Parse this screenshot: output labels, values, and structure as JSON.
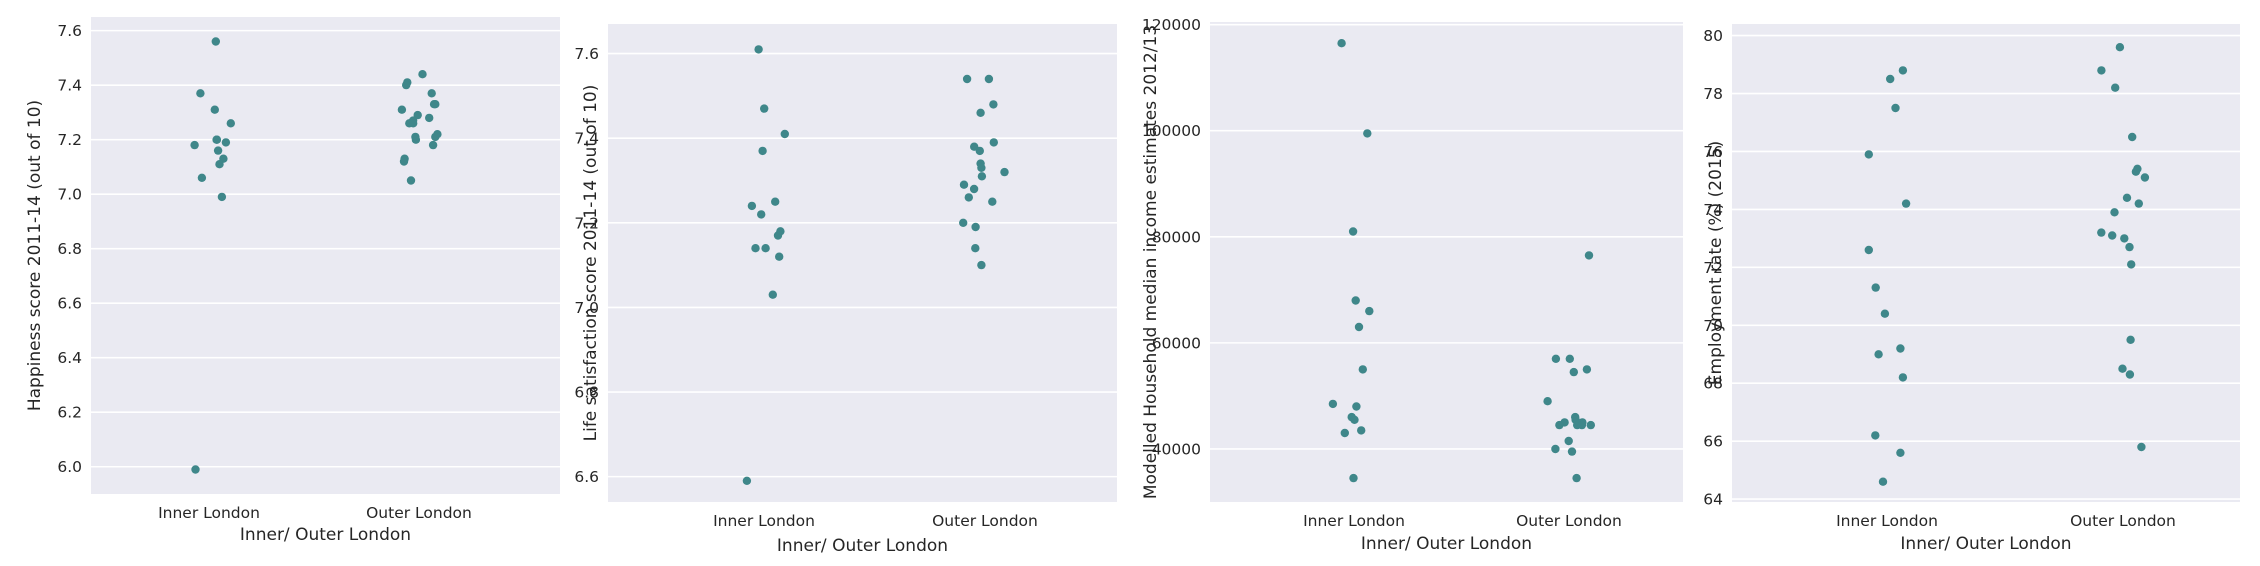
{
  "chart_data": [
    {
      "type": "scatter",
      "title": "",
      "xlabel": "Inner/ Outer London",
      "ylabel": "Happiness score 2011-14 (out of 10)",
      "categories": [
        "Inner London",
        "Outer London"
      ],
      "ylim": [
        5.9,
        7.65
      ],
      "yticks": [
        6.0,
        6.2,
        6.4,
        6.6,
        6.8,
        7.0,
        7.2,
        7.4,
        7.6
      ],
      "ytick_labels": [
        "6.0",
        "6.2",
        "6.4",
        "6.6",
        "6.8",
        "7.0",
        "7.2",
        "7.4",
        "7.6"
      ],
      "grid": true,
      "color": "#3f878a",
      "series": [
        {
          "category": "Inner London",
          "values": [
            7.56,
            7.37,
            7.31,
            7.26,
            7.2,
            7.2,
            7.18,
            7.19,
            7.16,
            7.13,
            7.11,
            7.06,
            6.99,
            5.99
          ]
        },
        {
          "category": "Outer London",
          "values": [
            7.44,
            7.41,
            7.4,
            7.37,
            7.33,
            7.33,
            7.31,
            7.29,
            7.28,
            7.27,
            7.26,
            7.26,
            7.22,
            7.21,
            7.21,
            7.2,
            7.18,
            7.13,
            7.12,
            7.05
          ]
        }
      ]
    },
    {
      "type": "scatter",
      "title": "",
      "xlabel": "Inner/ Outer London",
      "ylabel": "Life satisfaction score 2011-14 (out of 10)",
      "categories": [
        "Inner London",
        "Outer London"
      ],
      "ylim": [
        6.54,
        7.67
      ],
      "yticks": [
        6.6,
        6.8,
        7.0,
        7.2,
        7.4,
        7.6
      ],
      "ytick_labels": [
        "6.6",
        "6.8",
        "7.0",
        "7.2",
        "7.4",
        "7.6"
      ],
      "grid": true,
      "color": "#3f878a",
      "series": [
        {
          "category": "Inner London",
          "values": [
            7.61,
            7.47,
            7.41,
            7.37,
            7.25,
            7.24,
            7.22,
            7.18,
            7.17,
            7.14,
            7.14,
            7.12,
            7.03,
            6.59
          ]
        },
        {
          "category": "Outer London",
          "values": [
            7.54,
            7.54,
            7.48,
            7.46,
            7.39,
            7.38,
            7.37,
            7.34,
            7.33,
            7.32,
            7.31,
            7.29,
            7.28,
            7.26,
            7.25,
            7.2,
            7.19,
            7.14,
            7.1
          ]
        }
      ]
    },
    {
      "type": "scatter",
      "title": "",
      "xlabel": "Inner/ Outer London",
      "ylabel": "Modelled Household median income estimates 2012/13",
      "categories": [
        "Inner London",
        "Outer London"
      ],
      "ylim": [
        30000,
        120500
      ],
      "yticks": [
        40000,
        60000,
        80000,
        100000,
        120000
      ],
      "ytick_labels": [
        "40000",
        "60000",
        "80000",
        "100000",
        "120000"
      ],
      "grid": true,
      "color": "#3f878a",
      "series": [
        {
          "category": "Inner London",
          "values": [
            116500,
            99500,
            81000,
            68000,
            66000,
            63000,
            55000,
            48500,
            48000,
            46000,
            45500,
            43500,
            43000,
            34500
          ]
        },
        {
          "category": "Outer London",
          "values": [
            76500,
            57000,
            57000,
            55000,
            54500,
            49000,
            46000,
            45500,
            45000,
            45000,
            44500,
            44500,
            44500,
            44500,
            41500,
            40000,
            39500,
            34500
          ]
        }
      ]
    },
    {
      "type": "scatter",
      "title": "",
      "xlabel": "Inner/ Outer London",
      "ylabel": "Employment rate (%) (2015)",
      "categories": [
        "Inner London",
        "Outer London"
      ],
      "ylim": [
        63.9,
        80.4
      ],
      "yticks": [
        64,
        66,
        68,
        70,
        72,
        74,
        76,
        78,
        80
      ],
      "ytick_labels": [
        "64",
        "66",
        "68",
        "70",
        "72",
        "74",
        "76",
        "78",
        "80"
      ],
      "grid": true,
      "color": "#3f878a",
      "series": [
        {
          "category": "Inner London",
          "values": [
            78.8,
            78.5,
            77.5,
            75.9,
            74.2,
            72.6,
            71.3,
            70.4,
            69.2,
            69.0,
            68.2,
            66.2,
            65.6,
            64.6
          ]
        },
        {
          "category": "Outer London",
          "values": [
            79.6,
            78.8,
            78.2,
            76.5,
            75.4,
            75.3,
            75.1,
            74.4,
            74.2,
            73.9,
            73.2,
            73.1,
            73.0,
            72.7,
            72.1,
            69.5,
            68.5,
            68.3,
            65.8
          ]
        }
      ]
    }
  ]
}
